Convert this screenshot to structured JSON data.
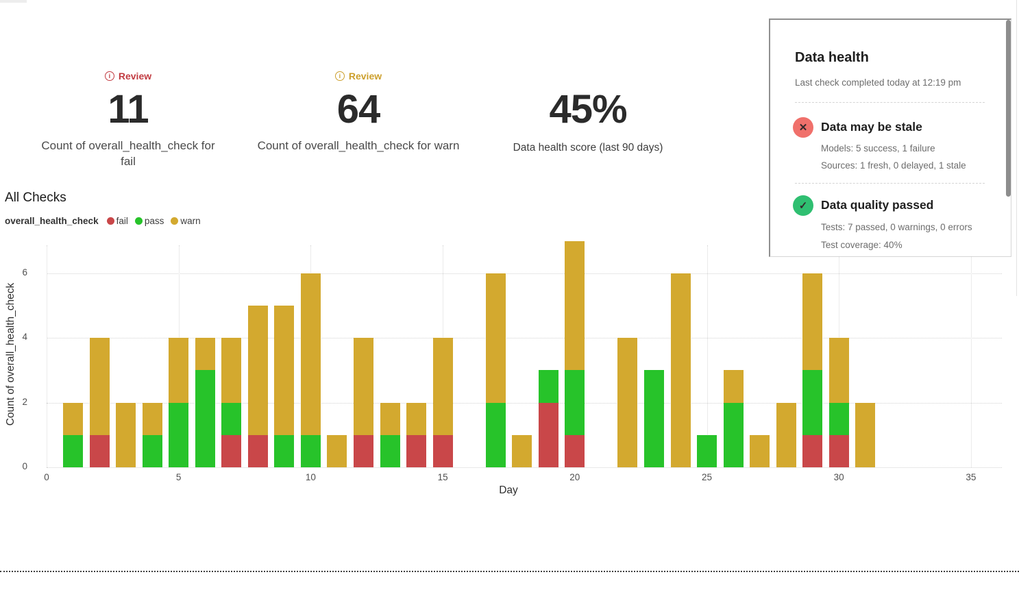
{
  "header": {
    "kpis": [
      {
        "badge": "Review",
        "badge_color": "#c13b41",
        "value": "11",
        "label": "Count of overall_health_check for fail"
      },
      {
        "badge": "Review",
        "badge_color": "#cc9f2c",
        "value": "64",
        "label": "Count of overall_health_check for warn"
      },
      {
        "value": "45%",
        "label": "Data health score (last 90 days)"
      }
    ]
  },
  "section": {
    "title": "All Checks",
    "legend_title": "overall_health_check"
  },
  "chart_data": {
    "type": "bar",
    "stacked": true,
    "title": "All Checks",
    "xlabel": "Day",
    "ylabel": "Count of overall_health_check",
    "x": [
      1,
      2,
      3,
      4,
      5,
      6,
      7,
      8,
      9,
      10,
      11,
      12,
      13,
      14,
      15,
      16,
      17,
      18,
      19,
      20,
      21,
      22,
      23,
      24,
      25,
      26,
      27,
      28,
      29,
      30,
      31
    ],
    "series": [
      {
        "name": "fail",
        "values": [
          0,
          1,
          0,
          0,
          0,
          0,
          1,
          1,
          0,
          0,
          0,
          1,
          0,
          1,
          1,
          0,
          0,
          0,
          2,
          1,
          0,
          0,
          0,
          0,
          0,
          0,
          0,
          0,
          1,
          1,
          0
        ]
      },
      {
        "name": "pass",
        "values": [
          1,
          0,
          0,
          1,
          2,
          3,
          1,
          0,
          1,
          1,
          0,
          0,
          1,
          0,
          0,
          0,
          2,
          0,
          1,
          2,
          0,
          0,
          3,
          0,
          1,
          2,
          0,
          0,
          2,
          1,
          0
        ]
      },
      {
        "name": "warn",
        "values": [
          1,
          3,
          2,
          1,
          2,
          1,
          2,
          4,
          4,
          5,
          1,
          3,
          1,
          1,
          3,
          0,
          4,
          1,
          0,
          4,
          0,
          4,
          0,
          6,
          0,
          1,
          1,
          2,
          3,
          2,
          2
        ]
      }
    ],
    "colors": {
      "fail": "#c94749",
      "pass": "#27c32a",
      "warn": "#d3a92f"
    },
    "legend": [
      {
        "label": "fail",
        "color": "#c94749"
      },
      {
        "label": "pass",
        "color": "#27c32a"
      },
      {
        "label": "warn",
        "color": "#d3a92f"
      }
    ],
    "xlim": [
      0,
      35
    ],
    "ylim": [
      0,
      7
    ],
    "xticks": [
      0,
      5,
      10,
      15,
      20,
      25,
      30,
      35
    ],
    "yticks": [
      0,
      2,
      4,
      6
    ],
    "grid": "dotted",
    "legend_position": "top-left"
  },
  "panel": {
    "title": "Data health",
    "subtitle": "Last check completed today at 12:19 pm",
    "items": [
      {
        "icon": "x-circle-icon",
        "icon_color": "#f0706b",
        "title": "Data may be stale",
        "lines": [
          "Models: 5 success, 1 failure",
          "Sources: 1 fresh, 0 delayed, 1 stale"
        ]
      },
      {
        "icon": "check-circle-icon",
        "icon_color": "#2fbf71",
        "title": "Data quality passed",
        "lines": [
          "Tests: 7 passed, 0 warnings, 0 errors",
          "Test coverage: 40%"
        ]
      }
    ]
  }
}
